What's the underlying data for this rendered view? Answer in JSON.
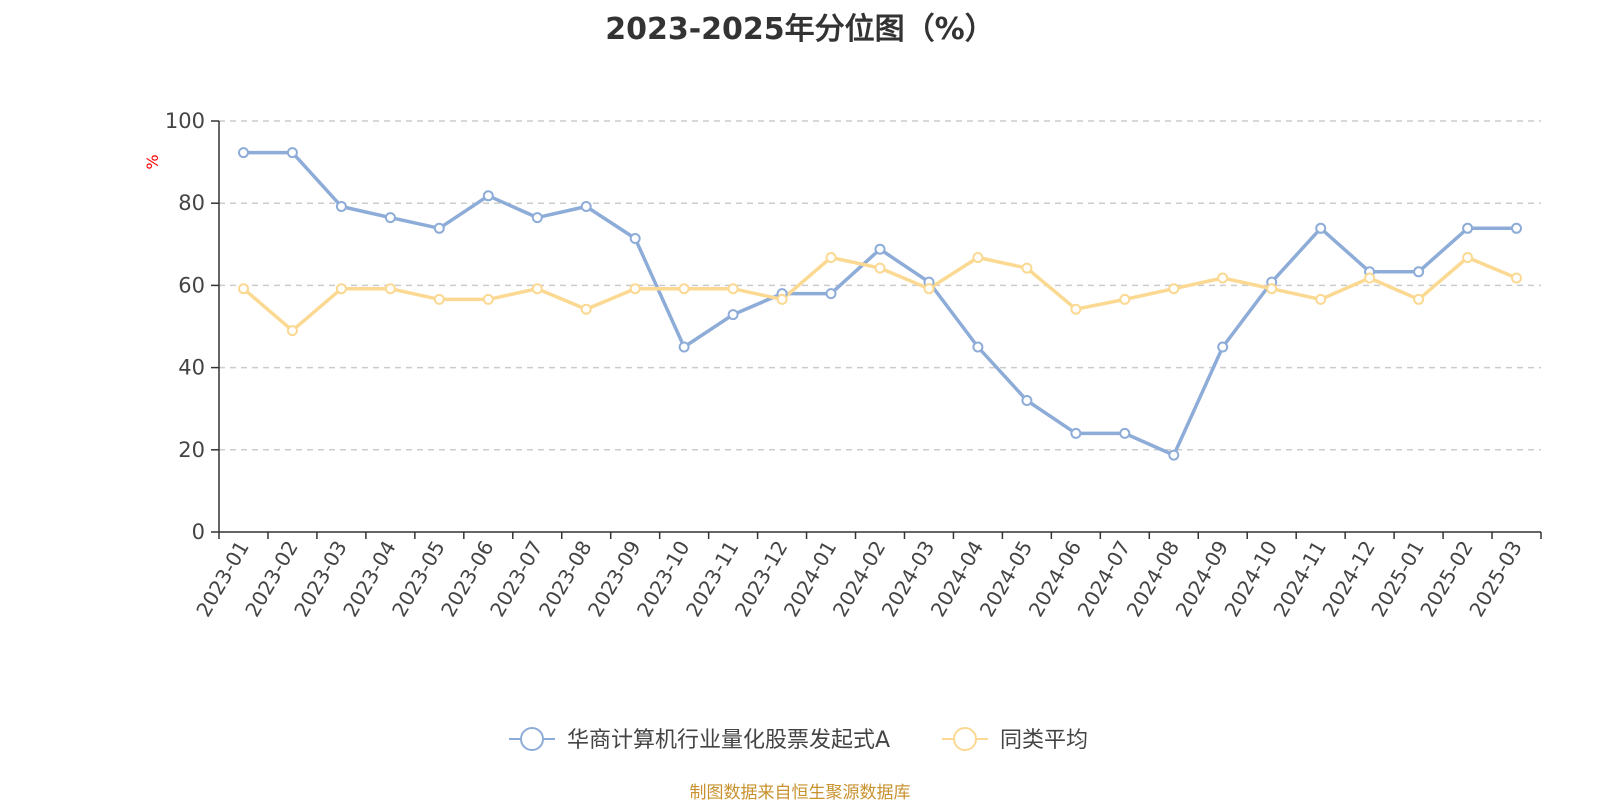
{
  "chart_data": {
    "type": "line",
    "title": "2023-2025年分位图（%）",
    "ylabel": "%",
    "xlabel": "",
    "ylim": [
      0,
      100
    ],
    "yticks": [
      0,
      20,
      40,
      60,
      80,
      100
    ],
    "grid": "horizontal dashed",
    "legend_position": "bottom-center",
    "categories": [
      "2023-01",
      "2023-02",
      "2023-03",
      "2023-04",
      "2023-05",
      "2023-06",
      "2023-07",
      "2023-08",
      "2023-09",
      "2023-10",
      "2023-11",
      "2023-12",
      "2024-01",
      "2024-02",
      "2024-03",
      "2024-04",
      "2024-05",
      "2024-06",
      "2024-07",
      "2024-08",
      "2024-09",
      "2024-10",
      "2024-11",
      "2024-12",
      "2025-01",
      "2025-02",
      "2025-03"
    ],
    "series": [
      {
        "name": "华商计算机行业量化股票发起式A",
        "color": "#8eacd8",
        "values": [
          92.3,
          92.3,
          79.2,
          76.5,
          73.9,
          81.8,
          76.5,
          79.2,
          71.4,
          45.0,
          52.9,
          58.0,
          58.0,
          68.8,
          60.8,
          45.0,
          32.0,
          24.0,
          24.0,
          18.7,
          45.0,
          60.8,
          73.9,
          63.3,
          63.3,
          73.9,
          73.9
        ]
      },
      {
        "name": "同类平均",
        "color": "#fbd992",
        "values": [
          59.2,
          49.0,
          59.2,
          59.2,
          56.6,
          56.6,
          59.2,
          54.2,
          59.2,
          59.2,
          59.2,
          56.6,
          66.8,
          64.2,
          59.2,
          66.8,
          64.2,
          54.2,
          56.6,
          59.2,
          61.8,
          59.2,
          56.6,
          61.8,
          56.6,
          66.8,
          61.8
        ]
      }
    ]
  },
  "source_text": "制图数据来自恒生聚源数据库"
}
